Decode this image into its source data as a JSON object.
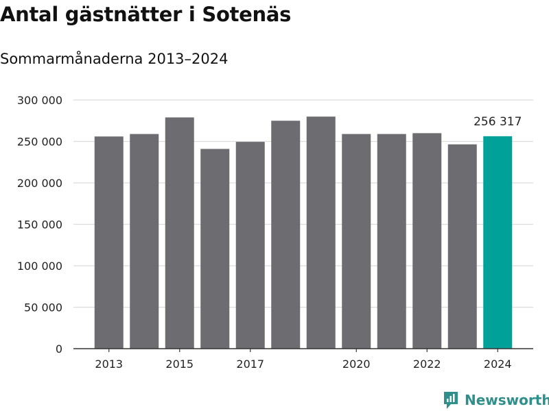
{
  "chart_data": {
    "type": "bar",
    "title": "Antal gästnätter i Sotenäs",
    "subtitle": "Sommarmånaderna 2013–2024",
    "categories": [
      "2013",
      "2014",
      "2015",
      "2016",
      "2017",
      "2018",
      "2019",
      "2020",
      "2021",
      "2022",
      "2023",
      "2024"
    ],
    "values": [
      256000,
      259000,
      279000,
      241000,
      249500,
      275000,
      280000,
      259000,
      259000,
      260000,
      246500,
      256317
    ],
    "x_tick_labels": [
      "2013",
      "2015",
      "2017",
      "2020",
      "2022",
      "2024"
    ],
    "y_ticks": [
      0,
      50000,
      100000,
      150000,
      200000,
      250000,
      300000
    ],
    "y_tick_labels": [
      "0",
      "50 000",
      "100 000",
      "150 000",
      "200 000",
      "250 000",
      "300 000"
    ],
    "ylim": [
      0,
      300000
    ],
    "grid": true,
    "highlight_index": 11,
    "annotation": "256 317",
    "colors": {
      "bar": "#6d6c71",
      "highlight": "#00a199",
      "grid": "#dcdcdc",
      "axis": "#333333"
    }
  },
  "brand": {
    "name": "Newsworthy",
    "color": "#2f8f8a"
  }
}
